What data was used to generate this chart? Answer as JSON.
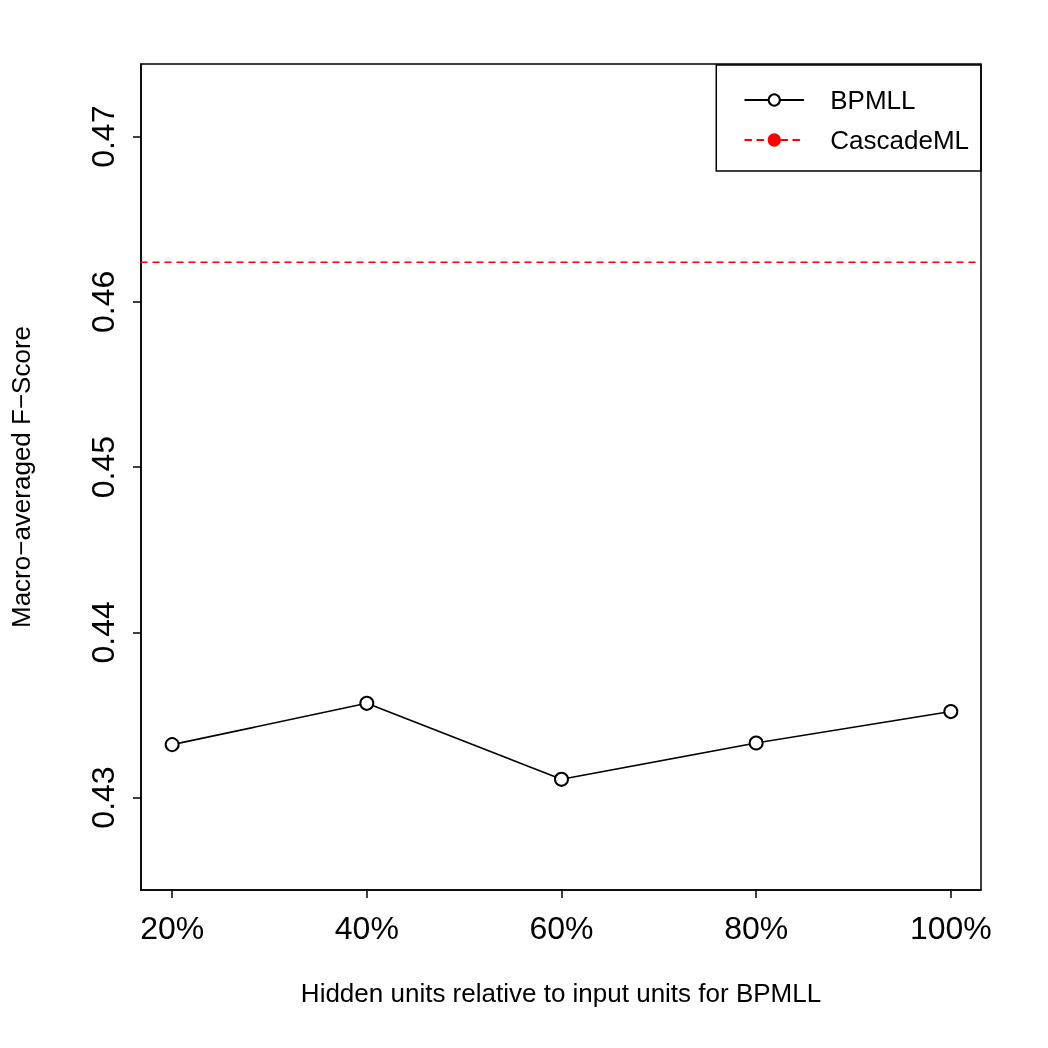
{
  "chart_data": {
    "type": "line",
    "xlabel": "Hidden units relative to input units for BPMLL",
    "ylabel": "Macro−averaged F−Score",
    "x": [
      20,
      40,
      60,
      80,
      100
    ],
    "xlim": [
      16.8,
      103.1
    ],
    "xticks": [
      {
        "value": 20,
        "label": "20%"
      },
      {
        "value": 40,
        "label": "40%"
      },
      {
        "value": 60,
        "label": "60%"
      },
      {
        "value": 80,
        "label": "80%"
      },
      {
        "value": 100,
        "label": "100%"
      }
    ],
    "ylim": [
      0.4244,
      0.4744
    ],
    "yticks": [
      0.43,
      0.44,
      0.45,
      0.46,
      0.47
    ],
    "series": [
      {
        "name": "BPMLL",
        "color": "#000000",
        "values": [
          0.4332,
          0.4357,
          0.4311,
          0.4333,
          0.4352
        ],
        "marker": "circle",
        "line_style": "solid"
      },
      {
        "name": "CascadeML",
        "color": "#ff0000",
        "x": [
          16.8,
          103.1
        ],
        "values": [
          0.4624,
          0.4624
        ],
        "marker": "none",
        "line_style": "dashed"
      }
    ],
    "grid": false,
    "legend": "top right"
  }
}
